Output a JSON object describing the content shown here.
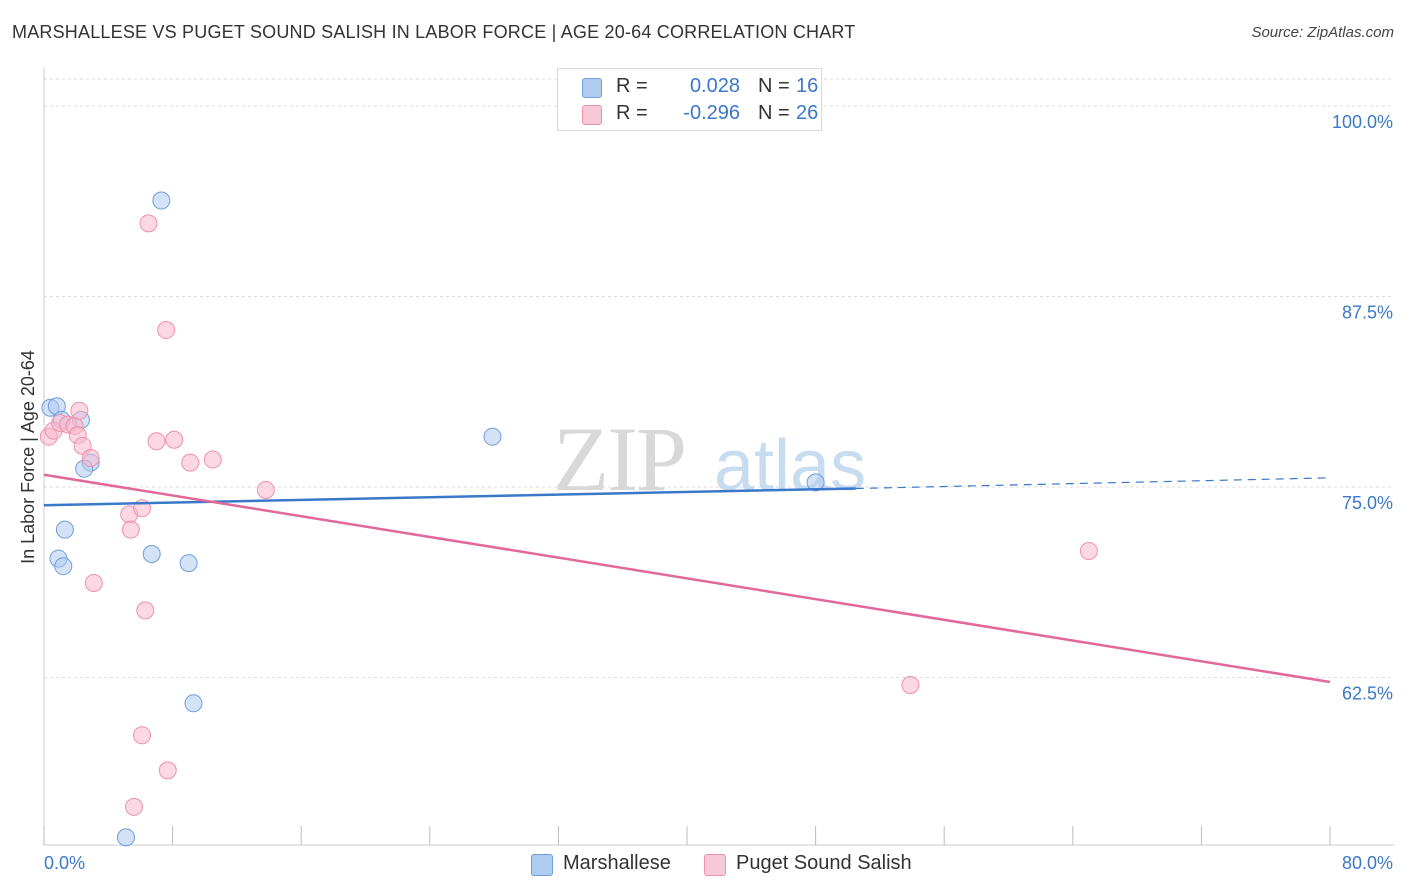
{
  "header": {
    "title": "MARSHALLESE VS PUGET SOUND SALISH IN LABOR FORCE | AGE 20-64 CORRELATION CHART",
    "source": "Source: ZipAtlas.com"
  },
  "watermark": {
    "zip": "ZIP",
    "atlas": "atlas"
  },
  "legend": {
    "rows": [
      {
        "r_label": "R =",
        "r_value": "0.028",
        "n_label": "N =",
        "n_value": "16",
        "color": "#aecbf0"
      },
      {
        "r_label": "R =",
        "r_value": "-0.296",
        "n_label": "N =",
        "n_value": "26",
        "color": "#f7b8cb"
      }
    ]
  },
  "bottom_legend": [
    {
      "label": "Marshallese",
      "color": "#aecbf0"
    },
    {
      "label": "Puget Sound Salish",
      "color": "#f7b8cb"
    }
  ],
  "chart_data": {
    "type": "scatter",
    "ylabel": "In Labor Force | Age 20-64",
    "xlim": [
      0,
      80
    ],
    "ylim": [
      51.5,
      102.5
    ],
    "x_tick_labels": [
      "0.0%",
      "80.0%"
    ],
    "y_ticks": [
      {
        "value": 62.5,
        "label": "62.5%"
      },
      {
        "value": 75.0,
        "label": "75.0%"
      },
      {
        "value": 87.5,
        "label": "87.5%"
      },
      {
        "value": 100.0,
        "label": "100.0%"
      }
    ],
    "series": [
      {
        "name": "Marshallese",
        "color": "#aecbf0",
        "stroke": "#6f9fd8",
        "line_color": "#3a78c9",
        "points": [
          [
            0.4,
            80.2
          ],
          [
            0.8,
            80.3
          ],
          [
            1.1,
            79.4
          ],
          [
            2.3,
            79.4
          ],
          [
            7.3,
            93.8
          ],
          [
            2.9,
            76.6
          ],
          [
            2.5,
            76.2
          ],
          [
            1.3,
            72.2
          ],
          [
            0.9,
            70.3
          ],
          [
            1.2,
            69.8
          ],
          [
            6.7,
            70.6
          ],
          [
            9.0,
            70.0
          ],
          [
            27.9,
            78.3
          ],
          [
            48.0,
            75.3
          ],
          [
            9.3,
            60.8
          ],
          [
            5.1,
            52.0
          ]
        ],
        "trend": {
          "x0": 0,
          "y0": 73.8,
          "x1": 50.5,
          "y1": 74.9,
          "dash_x1": 80,
          "dash_y1": 75.6
        }
      },
      {
        "name": "Puget Sound Salish",
        "color": "#f7b8cb",
        "stroke": "#ee91ad",
        "line_color": "#e2679a",
        "points": [
          [
            0.3,
            78.3
          ],
          [
            0.6,
            78.7
          ],
          [
            1.0,
            79.2
          ],
          [
            1.5,
            79.1
          ],
          [
            1.9,
            79.0
          ],
          [
            2.1,
            78.4
          ],
          [
            2.2,
            80.0
          ],
          [
            2.4,
            77.7
          ],
          [
            2.9,
            76.9
          ],
          [
            6.5,
            92.3
          ],
          [
            7.6,
            85.3
          ],
          [
            7.0,
            78.0
          ],
          [
            8.1,
            78.1
          ],
          [
            9.1,
            76.6
          ],
          [
            10.5,
            76.8
          ],
          [
            13.8,
            74.8
          ],
          [
            5.3,
            73.2
          ],
          [
            5.4,
            72.2
          ],
          [
            6.1,
            73.6
          ],
          [
            3.1,
            68.7
          ],
          [
            6.3,
            66.9
          ],
          [
            65.0,
            70.8
          ],
          [
            53.9,
            62.0
          ],
          [
            6.1,
            58.7
          ],
          [
            7.7,
            56.4
          ],
          [
            5.6,
            54.0
          ]
        ],
        "trend": {
          "x0": 0,
          "y0": 75.8,
          "x1": 80,
          "y1": 62.2
        }
      }
    ]
  }
}
